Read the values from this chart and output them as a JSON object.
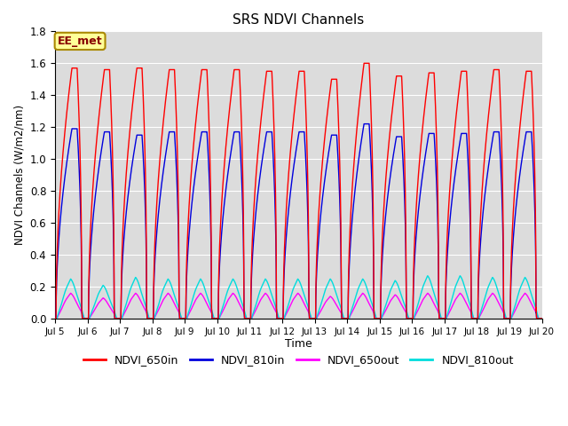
{
  "title": "SRS NDVI Channels",
  "xlabel": "Time",
  "ylabel": "NDVI Channels (W/m2/nm)",
  "ylim": [
    0.0,
    1.8
  ],
  "background_color": "#dcdcdc",
  "grid_color": "#ffffff",
  "series": {
    "NDVI_650in": {
      "color": "#ff0000",
      "lw": 1.0
    },
    "NDVI_810in": {
      "color": "#0000dd",
      "lw": 1.0
    },
    "NDVI_650out": {
      "color": "#ff00ff",
      "lw": 1.0
    },
    "NDVI_810out": {
      "color": "#00dddd",
      "lw": 1.0
    }
  },
  "annotation_text": "EE_met",
  "annotation_bg": "#ffff99",
  "annotation_border": "#aa8800",
  "annotation_text_color": "#880000",
  "num_days": 15,
  "peak_650in": [
    1.57,
    1.56,
    1.57,
    1.56,
    1.56,
    1.56,
    1.55,
    1.55,
    1.5,
    1.6,
    1.52,
    1.54,
    1.55,
    1.56,
    1.55
  ],
  "peak_810in": [
    1.19,
    1.17,
    1.15,
    1.17,
    1.17,
    1.17,
    1.17,
    1.17,
    1.15,
    1.22,
    1.14,
    1.16,
    1.16,
    1.17,
    1.17
  ],
  "peak_650out": [
    0.16,
    0.13,
    0.16,
    0.16,
    0.16,
    0.16,
    0.16,
    0.16,
    0.14,
    0.16,
    0.15,
    0.16,
    0.16,
    0.16,
    0.16
  ],
  "peak_810out": [
    0.25,
    0.21,
    0.26,
    0.25,
    0.25,
    0.25,
    0.25,
    0.25,
    0.25,
    0.25,
    0.24,
    0.27,
    0.27,
    0.26,
    0.26
  ],
  "xtick_labels": [
    "Jul 5",
    "Jul 6",
    "Jul 7",
    "Jul 8",
    "Jul 9",
    "Jul 10",
    "Jul 11",
    "Jul 12",
    "Jul 13",
    "Jul 14",
    "Jul 15",
    "Jul 16",
    "Jul 17",
    "Jul 18",
    "Jul 19",
    "Jul 20"
  ],
  "legend_entries": [
    "NDVI_650in",
    "NDVI_810in",
    "NDVI_650out",
    "NDVI_810out"
  ]
}
